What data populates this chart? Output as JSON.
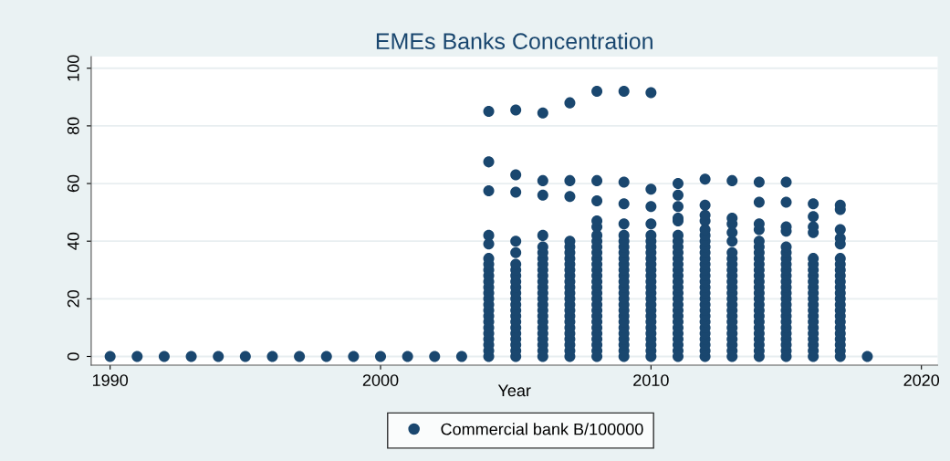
{
  "chart_data": {
    "type": "scatter",
    "title": "EMEs Banks Concentration",
    "xlabel": "Year",
    "xlim": [
      1989.3,
      2020.6
    ],
    "ylim": [
      -3,
      104
    ],
    "xticks": [
      1990,
      2000,
      2010,
      2020
    ],
    "yticks": [
      0,
      20,
      40,
      60,
      80,
      100
    ],
    "grid": "y",
    "legend": "bottom",
    "marker": "circle",
    "series": [
      {
        "name": "Commercial bank B/100000",
        "color": "#1a476f",
        "x": [
          1990,
          1991,
          1992,
          1993,
          1994,
          1995,
          1996,
          1997,
          1998,
          1999,
          2000,
          2001,
          2002,
          2003,
          2004,
          2004,
          2004,
          2004,
          2004,
          2004,
          2004,
          2004,
          2004,
          2004,
          2004,
          2004,
          2004,
          2004,
          2004,
          2004,
          2004,
          2004,
          2004,
          2004,
          2004,
          2004,
          2004,
          2005,
          2005,
          2005,
          2005,
          2005,
          2005,
          2005,
          2005,
          2005,
          2005,
          2005,
          2005,
          2005,
          2005,
          2005,
          2005,
          2005,
          2005,
          2005,
          2005,
          2005,
          2005,
          2006,
          2006,
          2006,
          2006,
          2006,
          2006,
          2006,
          2006,
          2006,
          2006,
          2006,
          2006,
          2006,
          2006,
          2006,
          2006,
          2006,
          2006,
          2006,
          2006,
          2006,
          2006,
          2006,
          2006,
          2007,
          2007,
          2007,
          2007,
          2007,
          2007,
          2007,
          2007,
          2007,
          2007,
          2007,
          2007,
          2007,
          2007,
          2007,
          2007,
          2007,
          2007,
          2007,
          2007,
          2007,
          2007,
          2007,
          2007,
          2008,
          2008,
          2008,
          2008,
          2008,
          2008,
          2008,
          2008,
          2008,
          2008,
          2008,
          2008,
          2008,
          2008,
          2008,
          2008,
          2008,
          2008,
          2008,
          2008,
          2008,
          2008,
          2008,
          2008,
          2008,
          2008,
          2008,
          2009,
          2009,
          2009,
          2009,
          2009,
          2009,
          2009,
          2009,
          2009,
          2009,
          2009,
          2009,
          2009,
          2009,
          2009,
          2009,
          2009,
          2009,
          2009,
          2009,
          2009,
          2009,
          2009,
          2009,
          2009,
          2009,
          2010,
          2010,
          2010,
          2010,
          2010,
          2010,
          2010,
          2010,
          2010,
          2010,
          2010,
          2010,
          2010,
          2010,
          2010,
          2010,
          2010,
          2010,
          2010,
          2010,
          2010,
          2010,
          2010,
          2010,
          2010,
          2010,
          2011,
          2011,
          2011,
          2011,
          2011,
          2011,
          2011,
          2011,
          2011,
          2011,
          2011,
          2011,
          2011,
          2011,
          2011,
          2011,
          2011,
          2011,
          2011,
          2011,
          2011,
          2011,
          2011,
          2011,
          2011,
          2011,
          2011,
          2012,
          2012,
          2012,
          2012,
          2012,
          2012,
          2012,
          2012,
          2012,
          2012,
          2012,
          2012,
          2012,
          2012,
          2012,
          2012,
          2012,
          2012,
          2012,
          2012,
          2012,
          2012,
          2012,
          2012,
          2012,
          2012,
          2012,
          2013,
          2013,
          2013,
          2013,
          2013,
          2013,
          2013,
          2013,
          2013,
          2013,
          2013,
          2013,
          2013,
          2013,
          2013,
          2013,
          2013,
          2013,
          2013,
          2013,
          2013,
          2013,
          2013,
          2013,
          2014,
          2014,
          2014,
          2014,
          2014,
          2014,
          2014,
          2014,
          2014,
          2014,
          2014,
          2014,
          2014,
          2014,
          2014,
          2014,
          2014,
          2014,
          2014,
          2014,
          2014,
          2014,
          2014,
          2014,
          2014,
          2015,
          2015,
          2015,
          2015,
          2015,
          2015,
          2015,
          2015,
          2015,
          2015,
          2015,
          2015,
          2015,
          2015,
          2015,
          2015,
          2015,
          2015,
          2015,
          2015,
          2015,
          2015,
          2015,
          2015,
          2016,
          2016,
          2016,
          2016,
          2016,
          2016,
          2016,
          2016,
          2016,
          2016,
          2016,
          2016,
          2016,
          2016,
          2016,
          2016,
          2016,
          2016,
          2016,
          2016,
          2016,
          2016,
          2017,
          2017,
          2017,
          2017,
          2017,
          2017,
          2017,
          2017,
          2017,
          2017,
          2017,
          2017,
          2017,
          2017,
          2017,
          2017,
          2017,
          2017,
          2017,
          2017,
          2017,
          2017,
          2017,
          2018
        ],
        "values": [
          0,
          0,
          0,
          0,
          0,
          0,
          0,
          0,
          0,
          0,
          0,
          0,
          0,
          0,
          0,
          2,
          4,
          6,
          8,
          10,
          12,
          14,
          16,
          18,
          20,
          22,
          24,
          26,
          28,
          30,
          32,
          34,
          39,
          42,
          57.5,
          67.5,
          85,
          0,
          2,
          4,
          6,
          8,
          10,
          12,
          14,
          16,
          18,
          20,
          22,
          24,
          26,
          28,
          30,
          32,
          36,
          40,
          57,
          63,
          85.5,
          0,
          2,
          4,
          6,
          8,
          10,
          12,
          14,
          16,
          18,
          20,
          22,
          24,
          26,
          28,
          30,
          32,
          34,
          36,
          38,
          42,
          56,
          61,
          84.5,
          0,
          2,
          4,
          6,
          8,
          10,
          12,
          14,
          16,
          18,
          20,
          22,
          24,
          26,
          28,
          30,
          32,
          34,
          36,
          38,
          40,
          55.5,
          61,
          88,
          0,
          2,
          4,
          6,
          8,
          10,
          12,
          14,
          16,
          18,
          20,
          22,
          24,
          26,
          28,
          30,
          32,
          34,
          36,
          38,
          40,
          42,
          45,
          47,
          54,
          61,
          92,
          0,
          2,
          4,
          6,
          8,
          10,
          12,
          14,
          16,
          18,
          20,
          22,
          24,
          26,
          28,
          30,
          32,
          34,
          36,
          38,
          40,
          42,
          46,
          53,
          60.5,
          92,
          0,
          2,
          4,
          6,
          8,
          10,
          12,
          14,
          16,
          18,
          20,
          22,
          24,
          26,
          28,
          30,
          32,
          34,
          36,
          38,
          40,
          42,
          46,
          52,
          58,
          91.5,
          0,
          2,
          4,
          6,
          8,
          10,
          12,
          14,
          16,
          18,
          20,
          22,
          24,
          26,
          28,
          30,
          32,
          34,
          36,
          38,
          40,
          42,
          47,
          48,
          52,
          56,
          60,
          0,
          2,
          4,
          6,
          8,
          10,
          12,
          14,
          16,
          18,
          20,
          22,
          24,
          26,
          28,
          30,
          32,
          34,
          36,
          38,
          40,
          42,
          44,
          47,
          49,
          52.5,
          61.5,
          0,
          2,
          4,
          6,
          8,
          10,
          12,
          14,
          16,
          18,
          20,
          22,
          24,
          26,
          28,
          30,
          32,
          34,
          36,
          40,
          43,
          46,
          48,
          61,
          0,
          2,
          4,
          6,
          8,
          10,
          12,
          14,
          16,
          18,
          20,
          22,
          24,
          26,
          28,
          30,
          32,
          34,
          36,
          38,
          40,
          44,
          46,
          53.5,
          60.5,
          0,
          2,
          4,
          6,
          8,
          10,
          12,
          14,
          16,
          18,
          20,
          22,
          24,
          26,
          28,
          30,
          32,
          34,
          36,
          38,
          43.5,
          45,
          53.5,
          60.5,
          0,
          2,
          4,
          6,
          8,
          10,
          12,
          14,
          16,
          18,
          20,
          22,
          24,
          26,
          28,
          30,
          32,
          34,
          43,
          45,
          48.5,
          53,
          0,
          2,
          4,
          6,
          8,
          10,
          12,
          14,
          16,
          18,
          20,
          22,
          24,
          26,
          28,
          30,
          32,
          34,
          39,
          41,
          44,
          51,
          52.5,
          0
        ]
      }
    ]
  }
}
